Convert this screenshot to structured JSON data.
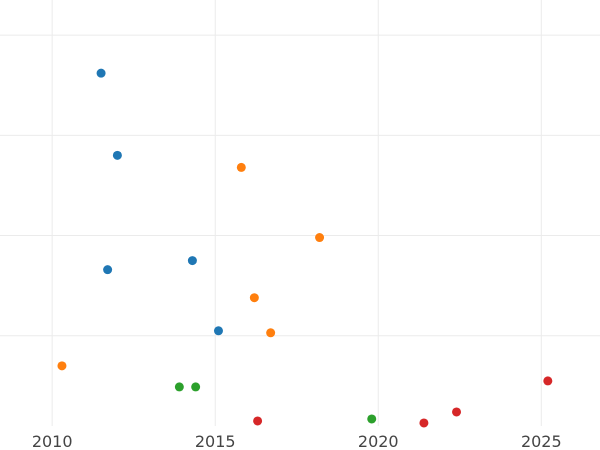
{
  "chart_data": {
    "type": "scatter",
    "title": "",
    "xlabel": "",
    "ylabel": "",
    "x_ticks": [
      "2010",
      "2015",
      "2020",
      "2025"
    ],
    "x_tick_values": [
      2010,
      2015,
      2020,
      2025
    ],
    "xlim": [
      2008.4,
      2026.8
    ],
    "ylim": [
      0,
      4.25
    ],
    "y_gridlines": [
      0.9,
      1.9,
      2.9,
      3.9
    ],
    "x_gridlines": [
      2010,
      2015,
      2020,
      2025
    ],
    "y_tick_labels_shown": false,
    "grid": true,
    "legend": "none",
    "series": [
      {
        "color": "#1f77b4",
        "points": [
          {
            "x": 2011.5,
            "y": 3.52
          },
          {
            "x": 2012.0,
            "y": 2.7
          },
          {
            "x": 2011.7,
            "y": 1.56
          },
          {
            "x": 2014.3,
            "y": 1.65
          },
          {
            "x": 2015.1,
            "y": 0.95
          }
        ]
      },
      {
        "color": "#ff7f0e",
        "points": [
          {
            "x": 2015.8,
            "y": 2.58
          },
          {
            "x": 2018.2,
            "y": 1.88
          },
          {
            "x": 2016.2,
            "y": 1.28
          },
          {
            "x": 2016.7,
            "y": 0.93
          },
          {
            "x": 2010.3,
            "y": 0.6
          }
        ]
      },
      {
        "color": "#2ca02c",
        "points": [
          {
            "x": 2013.9,
            "y": 0.39
          },
          {
            "x": 2014.4,
            "y": 0.39
          },
          {
            "x": 2019.8,
            "y": 0.07
          }
        ]
      },
      {
        "color": "#d62728",
        "points": [
          {
            "x": 2016.3,
            "y": 0.05
          },
          {
            "x": 2021.4,
            "y": 0.03
          },
          {
            "x": 2022.4,
            "y": 0.14
          },
          {
            "x": 2025.2,
            "y": 0.45
          }
        ]
      }
    ]
  }
}
